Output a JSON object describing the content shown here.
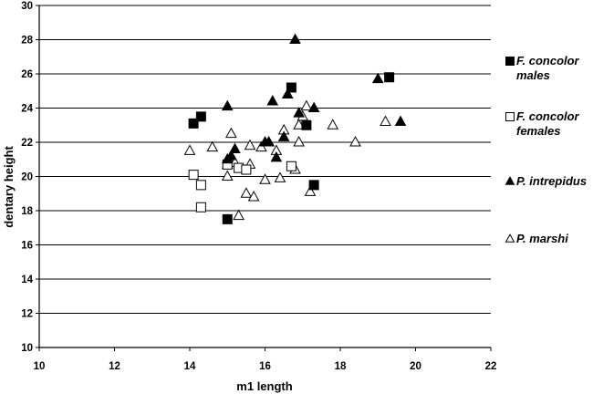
{
  "chart_data": {
    "type": "scatter",
    "title": "",
    "xlabel": "m1 length",
    "ylabel": "dentary height",
    "xlim": [
      10,
      22
    ],
    "ylim": [
      10,
      30
    ],
    "x_ticks": [
      10,
      12,
      14,
      16,
      18,
      20,
      22
    ],
    "y_ticks": [
      10,
      12,
      14,
      16,
      18,
      20,
      22,
      24,
      26,
      28,
      30
    ],
    "grid": "horizontal",
    "legend_position": "right",
    "series": [
      {
        "name": "F. concolor males",
        "legend_lines": [
          "F. concolor",
          "males"
        ],
        "marker": "square-filled",
        "x": [
          14.1,
          14.3,
          15.0,
          16.7,
          17.1,
          17.3,
          19.3
        ],
        "y": [
          23.1,
          23.5,
          17.5,
          25.2,
          23.0,
          19.5,
          25.8
        ]
      },
      {
        "name": "F. concolor females",
        "legend_lines": [
          "F. concolor",
          "females"
        ],
        "marker": "square-open",
        "x": [
          14.1,
          14.3,
          14.3,
          15.0,
          15.3,
          15.5,
          16.7
        ],
        "y": [
          20.1,
          19.5,
          18.2,
          20.7,
          20.5,
          20.4,
          20.6
        ]
      },
      {
        "name": "P. intrepidus",
        "legend_lines": [
          "P. intrepidus"
        ],
        "marker": "triangle-filled",
        "x": [
          15.0,
          15.0,
          15.2,
          15.1,
          16.0,
          16.1,
          16.2,
          16.3,
          16.5,
          16.6,
          16.8,
          16.9,
          17.3,
          19.0,
          19.6
        ],
        "y": [
          24.1,
          21.0,
          21.6,
          21.2,
          22.0,
          22.0,
          24.4,
          21.1,
          22.3,
          24.8,
          28.0,
          23.7,
          24.0,
          25.7,
          23.2
        ]
      },
      {
        "name": "P. marshi",
        "legend_lines": [
          "P. marshi"
        ],
        "marker": "triangle-open",
        "x": [
          14.0,
          14.6,
          15.0,
          15.0,
          15.1,
          15.2,
          15.3,
          15.5,
          15.6,
          15.6,
          15.7,
          15.9,
          16.0,
          16.1,
          16.3,
          16.4,
          16.5,
          16.8,
          16.9,
          16.9,
          17.0,
          17.1,
          17.2,
          17.8,
          18.4,
          19.2
        ],
        "y": [
          21.5,
          21.7,
          20.0,
          20.7,
          22.5,
          20.8,
          17.7,
          19.0,
          21.8,
          20.7,
          18.8,
          21.7,
          19.8,
          22.0,
          21.5,
          19.9,
          22.7,
          20.4,
          22.0,
          23.0,
          23.5,
          24.1,
          19.1,
          23.0,
          22.0,
          23.2
        ]
      }
    ]
  }
}
